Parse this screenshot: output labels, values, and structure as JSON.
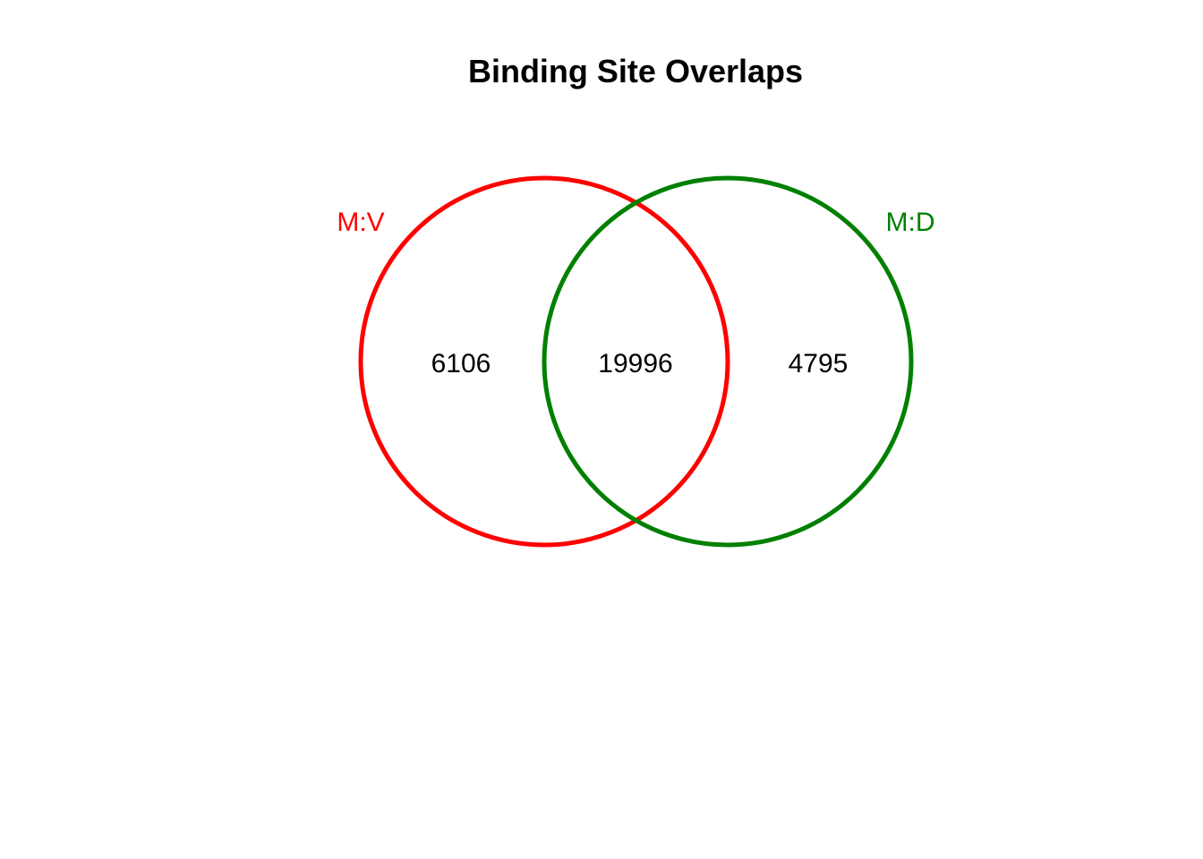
{
  "title": "Binding Site Overlaps",
  "sets": [
    {
      "name": "M:V",
      "color": "#ff0000"
    },
    {
      "name": "M:D",
      "color": "#008000"
    }
  ],
  "regions": {
    "left_only": "6106",
    "intersection": "19996",
    "right_only": "4795"
  }
}
